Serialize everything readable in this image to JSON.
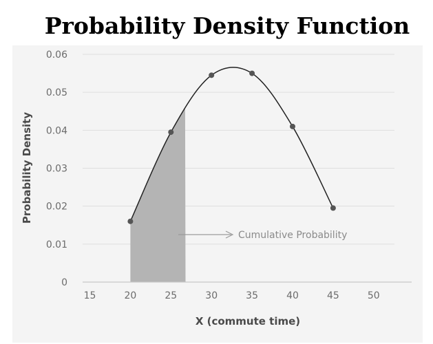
{
  "chart_data": {
    "type": "line",
    "title": "Probability Density Function",
    "xlabel": "X (commute time)",
    "ylabel": "Probability Density",
    "xlim": [
      13,
      59
    ],
    "ylim": [
      0,
      0.06
    ],
    "x_ticks": [
      "15",
      "20",
      "25",
      "30",
      "35",
      "40",
      "45",
      "50"
    ],
    "y_ticks": [
      "0",
      "0.01",
      "0.02",
      "0.03",
      "0.04",
      "0.05",
      "0.06"
    ],
    "grid": "horizontal",
    "series": [
      {
        "x": [
          20,
          25,
          30,
          35,
          40,
          45
        ],
        "y": [
          0.016,
          0.0395,
          0.0545,
          0.055,
          0.041,
          0.0195
        ]
      }
    ],
    "shaded_region": {
      "x_from": 20,
      "x_to": 26.8
    },
    "annotation": "Cumulative Probability",
    "colors": {
      "line": "#222222",
      "points": "#555555",
      "shade": "#b4b4b4",
      "grid": "#dedede",
      "panel": "#f4f4f4"
    }
  }
}
